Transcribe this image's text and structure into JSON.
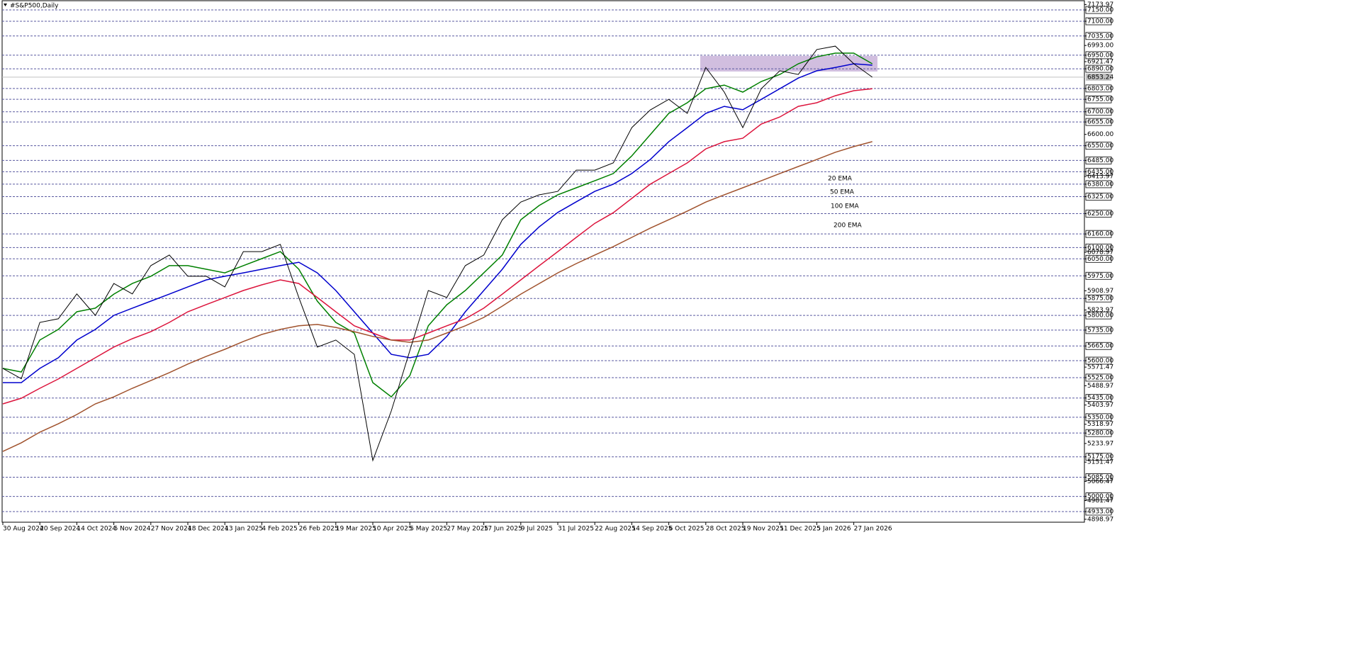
{
  "chart_data": {
    "type": "line",
    "title": "#S&P500,Daily",
    "categories": [
      "30 Aug 2024",
      null,
      "20 Sep 2024",
      null,
      "14 Oct 2024",
      null,
      "5 Nov 2024",
      null,
      "27 Nov 2024",
      null,
      "18 Dec 2024",
      null,
      "13 Jan 2025",
      null,
      "4 Feb 2025",
      null,
      "26 Feb 2025",
      null,
      "19 Mar 2025",
      null,
      "10 Apr 2025",
      null,
      "5 May 2025",
      null,
      "27 May 2025",
      null,
      "17 Jun 2025",
      null,
      "9 Jul 2025",
      null,
      "31 Jul 2025",
      null,
      "22 Aug 2025",
      null,
      "14 Sep 2025",
      null,
      "6 Oct 2025",
      null,
      "28 Oct 2025",
      null,
      "19 Nov 2025",
      null,
      "11 Dec 2025",
      null,
      "5 Jan 2026",
      null,
      "27 Jan 2026",
      null
    ],
    "price": {
      "color": "#000000",
      "values": [
        5566,
        5520,
        5769,
        5785,
        5895,
        5800,
        5941,
        5895,
        6020,
        6067,
        5973,
        5973,
        5926,
        6082,
        6082,
        6114,
        5879,
        5660,
        5691,
        5628,
        5159,
        5378,
        5644,
        5910,
        5879,
        6020,
        6067,
        6223,
        6301,
        6333,
        6348,
        6442,
        6442,
        6474,
        6630,
        6708,
        6755,
        6693,
        6896,
        6787,
        6630,
        6802,
        6881,
        6865,
        6975,
        6990,
        6912,
        6853
      ]
    },
    "series": [
      {
        "name": "20 EMA",
        "color": "#008000",
        "values": [
          5566,
          5550,
          5691,
          5738,
          5816,
          5832,
          5894,
          5941,
          5973,
          6020,
          6020,
          6004,
          5988,
          6020,
          6051,
          6082,
          6004,
          5863,
          5769,
          5722,
          5503,
          5440,
          5534,
          5754,
          5847,
          5910,
          5988,
          6067,
          6223,
          6286,
          6333,
          6364,
          6395,
          6427,
          6505,
          6599,
          6693,
          6740,
          6802,
          6818,
          6787,
          6834,
          6865,
          6912,
          6943,
          6959,
          6959,
          6912
        ]
      },
      {
        "name": "50 EMA",
        "color": "#0000cd",
        "values": [
          5503,
          5503,
          5566,
          5613,
          5691,
          5738,
          5800,
          5832,
          5863,
          5894,
          5926,
          5957,
          5973,
          5988,
          6004,
          6020,
          6035,
          5988,
          5910,
          5816,
          5722,
          5628,
          5613,
          5628,
          5707,
          5816,
          5910,
          6004,
          6114,
          6192,
          6255,
          6302,
          6348,
          6380,
          6427,
          6489,
          6568,
          6630,
          6693,
          6724,
          6709,
          6755,
          6802,
          6849,
          6881,
          6896,
          6912,
          6906
        ]
      },
      {
        "name": "100 EMA",
        "color": "#dc143c",
        "values": [
          5409,
          5434,
          5478,
          5519,
          5566,
          5613,
          5660,
          5697,
          5728,
          5769,
          5816,
          5848,
          5879,
          5910,
          5935,
          5957,
          5941,
          5879,
          5816,
          5754,
          5722,
          5691,
          5691,
          5722,
          5754,
          5785,
          5832,
          5894,
          5957,
          6020,
          6082,
          6145,
          6207,
          6254,
          6317,
          6380,
          6427,
          6474,
          6536,
          6568,
          6583,
          6646,
          6677,
          6724,
          6740,
          6771,
          6793,
          6802
        ]
      },
      {
        "name": "200 EMA",
        "color": "#a0522d",
        "values": [
          5199,
          5237,
          5284,
          5321,
          5362,
          5409,
          5440,
          5478,
          5512,
          5547,
          5585,
          5619,
          5650,
          5685,
          5716,
          5738,
          5754,
          5760,
          5747,
          5728,
          5707,
          5691,
          5681,
          5691,
          5722,
          5754,
          5791,
          5841,
          5894,
          5941,
          5988,
          6029,
          6067,
          6104,
          6145,
          6186,
          6223,
          6261,
          6301,
          6333,
          6364,
          6395,
          6427,
          6458,
          6489,
          6521,
          6546,
          6568
        ]
      }
    ],
    "zone": {
      "range": [
        6878,
        6947
      ],
      "color": "#c9b3d9"
    },
    "current": {
      "value": 6853.24,
      "label": "6853.24"
    },
    "ylim": [
      4886,
      7194
    ],
    "yticks": [
      {
        "value": 7173.97,
        "label": "7173.97"
      },
      {
        "value": 6993,
        "label": "6993.00"
      },
      {
        "value": 6921.47,
        "label": "6921.47"
      },
      {
        "value": 6600,
        "label": "6600.00"
      },
      {
        "value": 6413.97,
        "label": "6413.97"
      },
      {
        "value": 6078.97,
        "label": "6078.97"
      },
      {
        "value": 5908.97,
        "label": "5908.97"
      },
      {
        "value": 5823.97,
        "label": "5823.97"
      },
      {
        "value": 5571.47,
        "label": "5571.47"
      },
      {
        "value": 5488.97,
        "label": "5488.97"
      },
      {
        "value": 5403.97,
        "label": "5403.97"
      },
      {
        "value": 5318.97,
        "label": "5318.97"
      },
      {
        "value": 5233.97,
        "label": "5233.97"
      },
      {
        "value": 5151.47,
        "label": "5151.47"
      },
      {
        "value": 5066.47,
        "label": "5066.47"
      },
      {
        "value": 4981.47,
        "label": "4981.47"
      },
      {
        "value": 4898.97,
        "label": "4898.97"
      }
    ],
    "levels": [
      {
        "value": 7150,
        "label": "7150.00"
      },
      {
        "value": 7100,
        "label": "7100.00"
      },
      {
        "value": 7035,
        "label": "7035.00"
      },
      {
        "value": 6950,
        "label": "6950.00"
      },
      {
        "value": 6890,
        "label": "6890.00"
      },
      {
        "value": 6803,
        "label": "6803.00"
      },
      {
        "value": 6755,
        "label": "6755.00"
      },
      {
        "value": 6700,
        "label": "6700.00"
      },
      {
        "value": 6655,
        "label": "6655.00"
      },
      {
        "value": 6550,
        "label": "6550.00"
      },
      {
        "value": 6485,
        "label": "6485.00"
      },
      {
        "value": 6435,
        "label": "6435.00"
      },
      {
        "value": 6380,
        "label": "6380.00"
      },
      {
        "value": 6325,
        "label": "6325.00"
      },
      {
        "value": 6250,
        "label": "6250.00"
      },
      {
        "value": 6160,
        "label": "6160.00"
      },
      {
        "value": 6100,
        "label": "6100.00"
      },
      {
        "value": 6050,
        "label": "6050.00"
      },
      {
        "value": 5975,
        "label": "5975.00"
      },
      {
        "value": 5875,
        "label": "5875.00"
      },
      {
        "value": 5800,
        "label": "5800.00"
      },
      {
        "value": 5735,
        "label": "5735.00"
      },
      {
        "value": 5665,
        "label": "5665.00"
      },
      {
        "value": 5600,
        "label": "5600.00"
      },
      {
        "value": 5525,
        "label": "5525.00"
      },
      {
        "value": 5435,
        "label": "5435.00"
      },
      {
        "value": 5350,
        "label": "5350.00"
      },
      {
        "value": 5280,
        "label": "5280.00"
      },
      {
        "value": 5175,
        "label": "5175.00"
      },
      {
        "value": 5085,
        "label": "5085.00"
      },
      {
        "value": 5000,
        "label": "5000.00"
      },
      {
        "value": 4933,
        "label": "4933.00"
      }
    ],
    "grid": true
  }
}
